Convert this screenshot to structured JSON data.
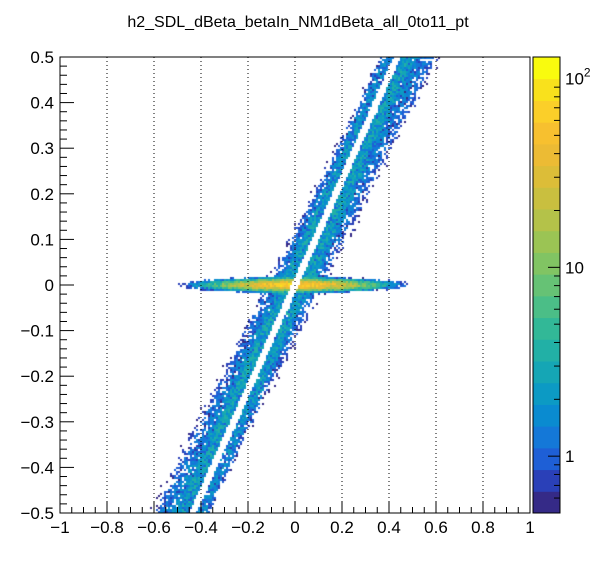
{
  "chart_data": {
    "type": "heatmap",
    "title": "h2_SDL_dBeta_betaIn_NM1dBeta_all_0to11_pt",
    "xlabel": "",
    "ylabel": "",
    "xlim": [
      -1,
      1
    ],
    "ylim": [
      -0.5,
      0.5
    ],
    "x_ticks": [
      -1,
      -0.8,
      -0.6,
      -0.4,
      -0.2,
      0,
      0.2,
      0.4,
      0.6,
      0.8,
      1
    ],
    "x_tick_labels": [
      "−1",
      "−0.8",
      "−0.6",
      "−0.4",
      "−0.2",
      "0",
      "0.2",
      "0.4",
      "0.6",
      "0.8",
      "1"
    ],
    "y_ticks": [
      -0.5,
      -0.4,
      -0.3,
      -0.2,
      -0.1,
      0,
      0.1,
      0.2,
      0.3,
      0.4,
      0.5
    ],
    "y_tick_labels": [
      "−0.5",
      "−0.4",
      "−0.3",
      "−0.2",
      "−0.1",
      "0",
      "0.1",
      "0.2",
      "0.3",
      "0.4",
      "0.5"
    ],
    "grid": "vertical dotted lines at x ticks",
    "colorbar": {
      "scale": "log",
      "range": [
        0.5,
        130
      ],
      "labels": [
        {
          "value": 1,
          "text": "1"
        },
        {
          "value": 10,
          "text": "10"
        },
        {
          "value": 100,
          "text": "10",
          "sup": "2"
        }
      ],
      "palette": [
        "#352a87",
        "#2a40b8",
        "#1e5fd6",
        "#1478d8",
        "#0a8bd0",
        "#0c9ac4",
        "#15a6b5",
        "#22b0a6",
        "#32b897",
        "#4bbe87",
        "#66c275",
        "#81c463",
        "#9bc454",
        "#b4c249",
        "#c9bf3f",
        "#dcbd38",
        "#ecbb34",
        "#f7c02f",
        "#fbcf29",
        "#f9e11c",
        "#f9fb0e"
      ]
    },
    "features": [
      {
        "name": "diagonal band",
        "relation": "y ≈ 1.0 * x (width ~0.12 in y)",
        "typical_count": "1-5"
      },
      {
        "name": "empty gap",
        "relation": "y ≈ 1.15 * x",
        "note": "narrow white stripe through origin"
      },
      {
        "name": "hot spot",
        "region": "x in [-0.3, 0.3], y ≈ 0",
        "typical_count": "up to ~100"
      }
    ]
  }
}
